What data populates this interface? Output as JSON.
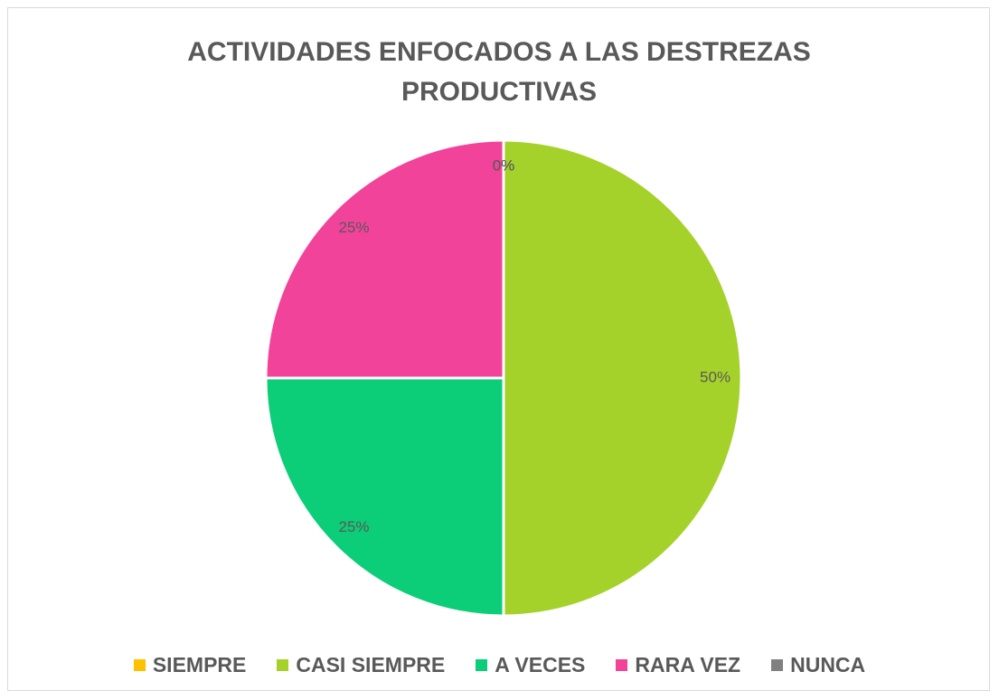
{
  "chart_data": {
    "type": "pie",
    "title": "ACTIVIDADES ENFOCADOS A LAS DESTREZAS PRODUCTIVAS",
    "categories": [
      "SIEMPRE",
      "CASI SIEMPRE",
      "A VECES",
      "RARA VEZ",
      "NUNCA"
    ],
    "values": [
      0,
      50,
      25,
      25,
      0
    ],
    "value_labels": [
      "0%",
      "50%",
      "25%",
      "25%",
      "0%"
    ],
    "colors": [
      "#ffc000",
      "#a5d22a",
      "#0ccd78",
      "#f2439a",
      "#808080"
    ],
    "legend": "bottom"
  }
}
